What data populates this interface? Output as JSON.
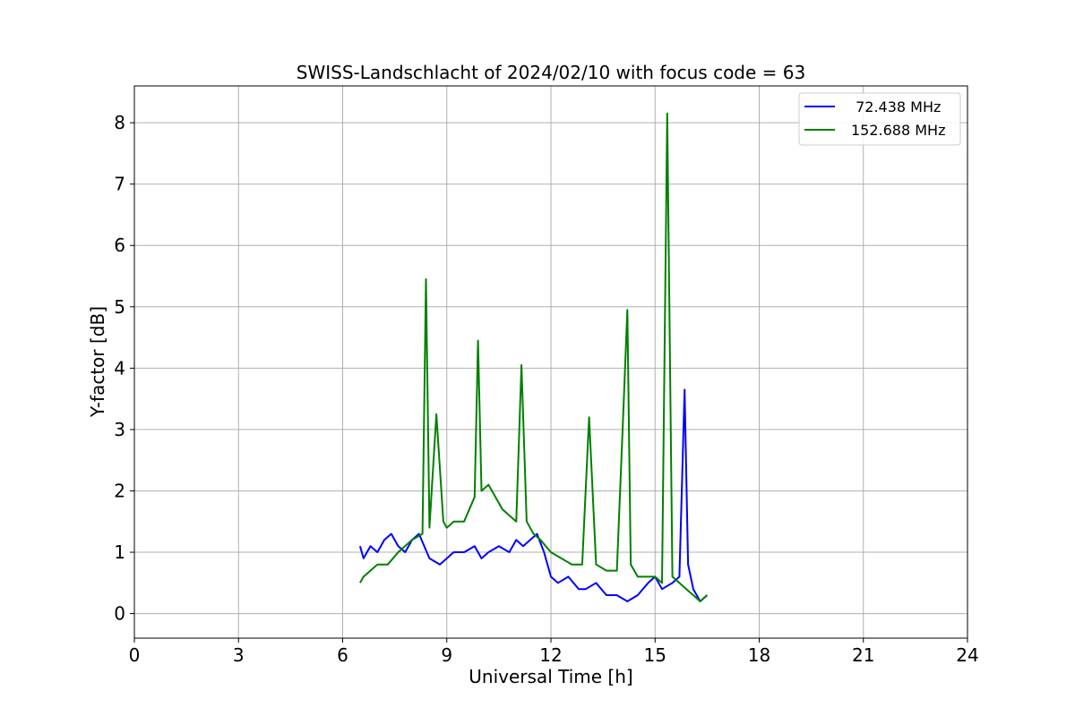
{
  "chart_data": {
    "type": "line",
    "title": "SWISS-Landschlacht of 2024/02/10 with focus code = 63",
    "xlabel": "Universal Time [h]",
    "ylabel": "Y-factor [dB]",
    "xlim": [
      0,
      24
    ],
    "ylim": [
      -0.4,
      8.6
    ],
    "xticks": [
      0,
      3,
      6,
      9,
      12,
      15,
      18,
      21,
      24
    ],
    "yticks": [
      0,
      1,
      2,
      3,
      4,
      5,
      6,
      7,
      8
    ],
    "grid": true,
    "legend_position": "top-right",
    "series": [
      {
        "name": " 72.438 MHz",
        "color": "#0000ff",
        "x": [
          6.5,
          6.6,
          6.8,
          7.0,
          7.2,
          7.4,
          7.6,
          7.8,
          8.0,
          8.2,
          8.5,
          8.8,
          9.0,
          9.2,
          9.5,
          9.8,
          10.0,
          10.2,
          10.5,
          10.8,
          11.0,
          11.2,
          11.4,
          11.6,
          11.8,
          12.0,
          12.2,
          12.5,
          12.8,
          13.0,
          13.3,
          13.6,
          13.9,
          14.2,
          14.5,
          14.8,
          15.0,
          15.2,
          15.5,
          15.7,
          15.85,
          15.95,
          16.1,
          16.3,
          16.5
        ],
        "y": [
          1.1,
          0.9,
          1.1,
          1.0,
          1.2,
          1.3,
          1.1,
          1.0,
          1.2,
          1.3,
          0.9,
          0.8,
          0.9,
          1.0,
          1.0,
          1.1,
          0.9,
          1.0,
          1.1,
          1.0,
          1.2,
          1.1,
          1.2,
          1.3,
          1.0,
          0.6,
          0.5,
          0.6,
          0.4,
          0.4,
          0.5,
          0.3,
          0.3,
          0.2,
          0.3,
          0.5,
          0.6,
          0.4,
          0.5,
          0.6,
          3.65,
          0.8,
          0.4,
          0.2,
          0.3
        ]
      },
      {
        "name": "152.688 MHz",
        "color": "#008000",
        "x": [
          6.5,
          6.6,
          6.8,
          7.0,
          7.3,
          7.6,
          8.0,
          8.3,
          8.4,
          8.5,
          8.7,
          8.9,
          9.0,
          9.2,
          9.5,
          9.8,
          9.9,
          10.0,
          10.2,
          10.4,
          10.6,
          10.8,
          11.0,
          11.15,
          11.3,
          11.5,
          11.7,
          12.0,
          12.3,
          12.6,
          12.9,
          13.1,
          13.3,
          13.6,
          13.9,
          14.1,
          14.2,
          14.3,
          14.5,
          14.8,
          15.0,
          15.2,
          15.35,
          15.5,
          15.7,
          15.9,
          16.1,
          16.3,
          16.5
        ],
        "y": [
          0.5,
          0.6,
          0.7,
          0.8,
          0.8,
          1.0,
          1.2,
          1.3,
          5.45,
          1.4,
          3.25,
          1.5,
          1.4,
          1.5,
          1.5,
          1.9,
          4.45,
          2.0,
          2.1,
          1.9,
          1.7,
          1.6,
          1.5,
          4.05,
          1.5,
          1.3,
          1.2,
          1.0,
          0.9,
          0.8,
          0.8,
          3.2,
          0.8,
          0.7,
          0.7,
          3.5,
          4.95,
          0.8,
          0.6,
          0.6,
          0.6,
          0.5,
          8.15,
          0.6,
          0.5,
          0.4,
          0.3,
          0.2,
          0.3
        ]
      }
    ]
  }
}
